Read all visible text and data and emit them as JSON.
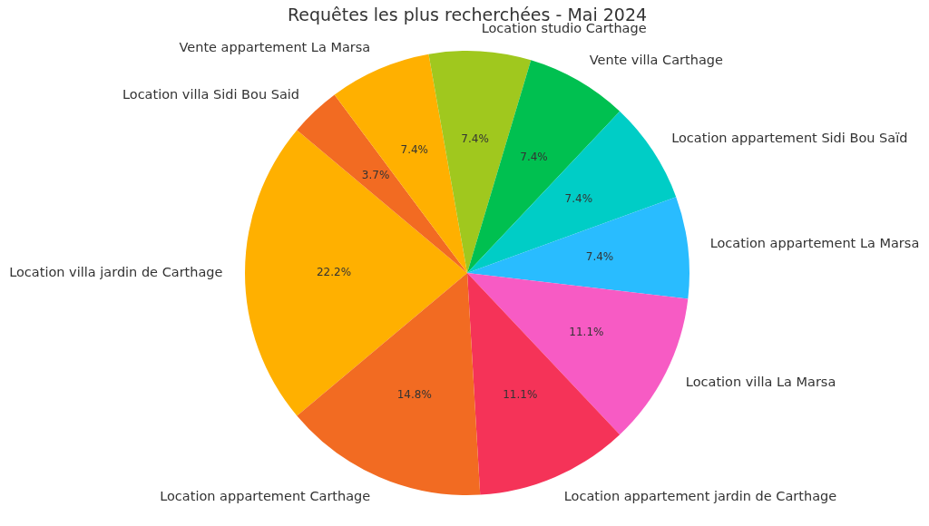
{
  "chart_data": {
    "type": "pie",
    "title": "Requêtes les plus recherchées - Mai 2024",
    "categories": [
      "Location villa jardin de Carthage",
      "Location villa Sidi Bou Said",
      "Vente appartement La Marsa",
      "Location studio Carthage",
      "Vente villa Carthage",
      "Location appartement Sidi Bou Saïd",
      "Location appartement La Marsa",
      "Location villa La Marsa",
      "Location appartement jardin de Carthage",
      "Location appartement Carthage"
    ],
    "values": [
      22.2,
      3.7,
      7.4,
      7.4,
      7.4,
      7.4,
      7.4,
      11.1,
      11.1,
      14.8
    ],
    "value_labels": [
      "22.2%",
      "3.7%",
      "7.4%",
      "7.4%",
      "7.4%",
      "7.4%",
      "7.4%",
      "11.1%",
      "11.1%",
      "14.8%"
    ],
    "colors": [
      "#ffb000",
      "#f26b22",
      "#ffb000",
      "#a0c81e",
      "#00c050",
      "#00cdc6",
      "#29bcff",
      "#f75bc4",
      "#f53358",
      "#f26b22"
    ],
    "legend": false
  }
}
